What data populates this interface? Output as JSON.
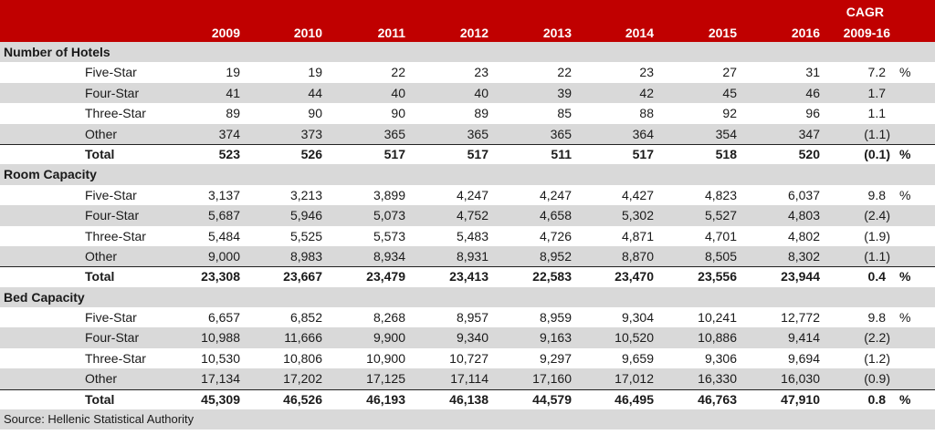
{
  "header": {
    "years": [
      "2009",
      "2010",
      "2011",
      "2012",
      "2013",
      "2014",
      "2015",
      "2016"
    ],
    "cagr_line1": "CAGR",
    "cagr_line2": "2009-16"
  },
  "colors": {
    "header_bg": "#C00000",
    "band": "#D9D9D9"
  },
  "sections": [
    {
      "title": "Number of Hotels",
      "rows": [
        {
          "label": "Five-Star",
          "values": [
            "19",
            "19",
            "22",
            "23",
            "22",
            "23",
            "27",
            "31"
          ],
          "cagr": "7.2",
          "unit": "%"
        },
        {
          "label": "Four-Star",
          "values": [
            "41",
            "44",
            "40",
            "40",
            "39",
            "42",
            "45",
            "46"
          ],
          "cagr": "1.7",
          "unit": ""
        },
        {
          "label": "Three-Star",
          "values": [
            "89",
            "90",
            "90",
            "89",
            "85",
            "88",
            "92",
            "96"
          ],
          "cagr": "1.1",
          "unit": ""
        },
        {
          "label": "Other",
          "values": [
            "374",
            "373",
            "365",
            "365",
            "365",
            "364",
            "354",
            "347"
          ],
          "cagr": "(1.1)",
          "unit": ""
        }
      ],
      "total": {
        "label": "Total",
        "values": [
          "523",
          "526",
          "517",
          "517",
          "511",
          "517",
          "518",
          "520"
        ],
        "cagr": "(0.1)",
        "unit": "%"
      }
    },
    {
      "title": "Room Capacity",
      "rows": [
        {
          "label": "Five-Star",
          "values": [
            "3,137",
            "3,213",
            "3,899",
            "4,247",
            "4,247",
            "4,427",
            "4,823",
            "6,037"
          ],
          "cagr": "9.8",
          "unit": "%"
        },
        {
          "label": "Four-Star",
          "values": [
            "5,687",
            "5,946",
            "5,073",
            "4,752",
            "4,658",
            "5,302",
            "5,527",
            "4,803"
          ],
          "cagr": "(2.4)",
          "unit": ""
        },
        {
          "label": "Three-Star",
          "values": [
            "5,484",
            "5,525",
            "5,573",
            "5,483",
            "4,726",
            "4,871",
            "4,701",
            "4,802"
          ],
          "cagr": "(1.9)",
          "unit": ""
        },
        {
          "label": "Other",
          "values": [
            "9,000",
            "8,983",
            "8,934",
            "8,931",
            "8,952",
            "8,870",
            "8,505",
            "8,302"
          ],
          "cagr": "(1.1)",
          "unit": ""
        }
      ],
      "total": {
        "label": "Total",
        "values": [
          "23,308",
          "23,667",
          "23,479",
          "23,413",
          "22,583",
          "23,470",
          "23,556",
          "23,944"
        ],
        "cagr": "0.4",
        "unit": "%"
      }
    },
    {
      "title": "Bed Capacity",
      "rows": [
        {
          "label": "Five-Star",
          "values": [
            "6,657",
            "6,852",
            "8,268",
            "8,957",
            "8,959",
            "9,304",
            "10,241",
            "12,772"
          ],
          "cagr": "9.8",
          "unit": "%"
        },
        {
          "label": "Four-Star",
          "values": [
            "10,988",
            "11,666",
            "9,900",
            "9,340",
            "9,163",
            "10,520",
            "10,886",
            "9,414"
          ],
          "cagr": "(2.2)",
          "unit": ""
        },
        {
          "label": "Three-Star",
          "values": [
            "10,530",
            "10,806",
            "10,900",
            "10,727",
            "9,297",
            "9,659",
            "9,306",
            "9,694"
          ],
          "cagr": "(1.2)",
          "unit": ""
        },
        {
          "label": "Other",
          "values": [
            "17,134",
            "17,202",
            "17,125",
            "17,114",
            "17,160",
            "17,012",
            "16,330",
            "16,030"
          ],
          "cagr": "(0.9)",
          "unit": ""
        }
      ],
      "total": {
        "label": "Total",
        "values": [
          "45,309",
          "46,526",
          "46,193",
          "46,138",
          "44,579",
          "46,495",
          "46,763",
          "47,910"
        ],
        "cagr": "0.8",
        "unit": "%"
      }
    }
  ],
  "source": "Source: Hellenic Statistical Authority"
}
